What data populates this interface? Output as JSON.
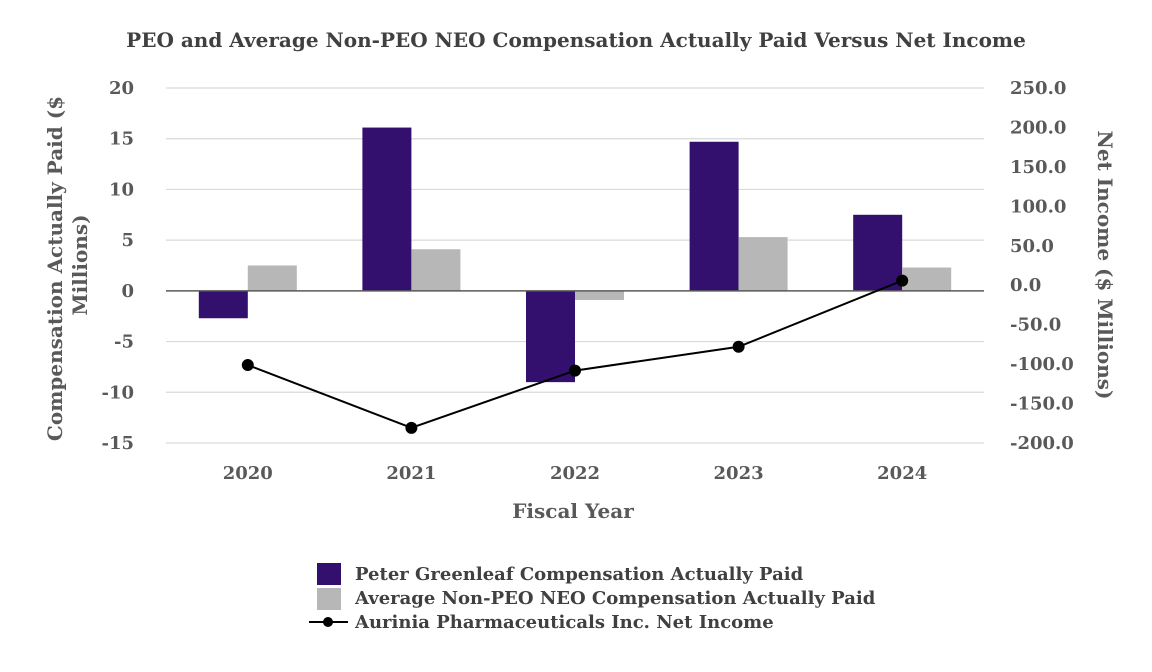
{
  "chart_data": {
    "type": "bar",
    "title": "PEO and Average Non-PEO NEO Compensation Actually Paid Versus Net Income",
    "xlabel": "Fiscal Year",
    "ylabel": "Compensation Actually Paid ($ Millions)",
    "ylabel_lines": [
      "Compensation Actually Paid ($",
      "Millions)"
    ],
    "y2label": "Net Income ($ Millions)",
    "categories": [
      "2020",
      "2021",
      "2022",
      "2023",
      "2024"
    ],
    "ylim": [
      -15,
      20
    ],
    "yticks": [
      20,
      15,
      10,
      5,
      0,
      -5,
      -10,
      -15
    ],
    "ytick_labels": [
      "20",
      "15",
      "10",
      "5",
      "0",
      "-5",
      "-10",
      "-15"
    ],
    "y2lim": [
      -200,
      250
    ],
    "y2ticks": [
      250,
      200,
      150,
      100,
      50,
      0,
      -50,
      -100,
      -150,
      -200
    ],
    "y2tick_labels": [
      "250.0",
      "200.0",
      "150.0",
      "100.0",
      "50.0",
      "0.0",
      "-50.0",
      "-100.0",
      "-150.0",
      "-200.0"
    ],
    "grid": true,
    "legend_position": "bottom",
    "series": [
      {
        "name": "Peter Greenleaf Compensation Actually Paid",
        "kind": "bar",
        "axis": "left",
        "color": "#33106e",
        "values": [
          -2.7,
          16.1,
          -9.0,
          14.7,
          7.5
        ]
      },
      {
        "name": "Average Non-PEO NEO Compensation Actually Paid",
        "kind": "bar",
        "axis": "left",
        "color": "#b7b7b7",
        "values": [
          2.5,
          4.1,
          -0.9,
          5.3,
          2.3
        ]
      },
      {
        "name": "Aurinia Pharmaceuticals Inc. Net Income",
        "kind": "line",
        "axis": "right",
        "color": "#000000",
        "values": [
          -101.2,
          -180.8,
          -108.2,
          -78.0,
          5.8
        ]
      }
    ]
  }
}
